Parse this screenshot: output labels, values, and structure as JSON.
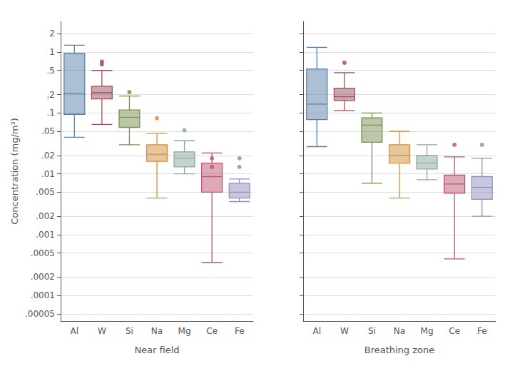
{
  "chart_data": {
    "type": "box",
    "ylabel": "Concentration (mg/m³)",
    "categories": [
      "Al",
      "W",
      "Si",
      "Na",
      "Mg",
      "Ce",
      "Fe"
    ],
    "colors": [
      "#5b7fa6",
      "#9e4f5e",
      "#7a9050",
      "#d4903a",
      "#8aaa9a",
      "#c05570",
      "#9090c0"
    ],
    "log": "y",
    "grid": true,
    "ylim": [
      3.8e-05,
      3.2
    ],
    "yticks": [
      {
        "value": 5e-05,
        "label": ".00005"
      },
      {
        "value": 0.0001,
        "label": ".0001"
      },
      {
        "value": 0.0002,
        "label": ".0002"
      },
      {
        "value": 0.0005,
        "label": ".0005"
      },
      {
        "value": 0.001,
        "label": ".001"
      },
      {
        "value": 0.002,
        "label": ".002"
      },
      {
        "value": 0.005,
        "label": ".005"
      },
      {
        "value": 0.01,
        "label": ".01"
      },
      {
        "value": 0.02,
        "label": ".02"
      },
      {
        "value": 0.05,
        "label": ".05"
      },
      {
        "value": 0.1,
        "label": ".1"
      },
      {
        "value": 0.2,
        "label": ".2"
      },
      {
        "value": 0.5,
        "label": ".5"
      },
      1,
      2
    ],
    "series": [
      {
        "name": "Near field",
        "values": [
          {
            "whislo": 0.04,
            "q1": 0.095,
            "med": 0.21,
            "q3": 0.95,
            "whishi": 1.3,
            "fliers": []
          },
          {
            "whislo": 0.065,
            "q1": 0.17,
            "med": 0.215,
            "q3": 0.275,
            "whishi": 0.5,
            "fliers": [
              0.63,
              0.7
            ]
          },
          {
            "whislo": 0.03,
            "q1": 0.058,
            "med": 0.085,
            "q3": 0.112,
            "whishi": 0.19,
            "fliers": [
              0.22
            ]
          },
          {
            "whislo": 0.004,
            "q1": 0.016,
            "med": 0.021,
            "q3": 0.03,
            "whishi": 0.046,
            "fliers": [
              0.082
            ]
          },
          {
            "whislo": 0.01,
            "q1": 0.013,
            "med": 0.018,
            "q3": 0.023,
            "whishi": 0.035,
            "fliers": [
              0.052
            ]
          },
          {
            "whislo": 0.00035,
            "q1": 0.005,
            "med": 0.009,
            "q3": 0.015,
            "whishi": 0.022,
            "fliers": [
              0.013,
              0.018
            ]
          },
          {
            "whislo": 0.0035,
            "q1": 0.004,
            "med": 0.005,
            "q3": 0.007,
            "whishi": 0.0082,
            "fliers": [
              0.013,
              0.018
            ]
          }
        ]
      },
      {
        "name": "Breathing zone",
        "values": [
          {
            "whislo": 0.028,
            "q1": 0.078,
            "med": 0.14,
            "q3": 0.53,
            "whishi": 1.2,
            "fliers": []
          },
          {
            "whislo": 0.11,
            "q1": 0.16,
            "med": 0.185,
            "q3": 0.255,
            "whishi": 0.46,
            "fliers": [
              0.67
            ]
          },
          {
            "whislo": 0.007,
            "q1": 0.033,
            "med": 0.063,
            "q3": 0.083,
            "whishi": 0.1,
            "fliers": []
          },
          {
            "whislo": 0.004,
            "q1": 0.015,
            "med": 0.02,
            "q3": 0.03,
            "whishi": 0.05,
            "fliers": []
          },
          {
            "whislo": 0.008,
            "q1": 0.012,
            "med": 0.015,
            "q3": 0.02,
            "whishi": 0.03,
            "fliers": []
          },
          {
            "whislo": 0.0004,
            "q1": 0.0048,
            "med": 0.0068,
            "q3": 0.0095,
            "whishi": 0.019,
            "fliers": [
              0.03
            ]
          },
          {
            "whislo": 0.002,
            "q1": 0.0038,
            "med": 0.006,
            "q3": 0.009,
            "whishi": 0.018,
            "fliers": [
              0.03
            ]
          }
        ]
      }
    ]
  }
}
